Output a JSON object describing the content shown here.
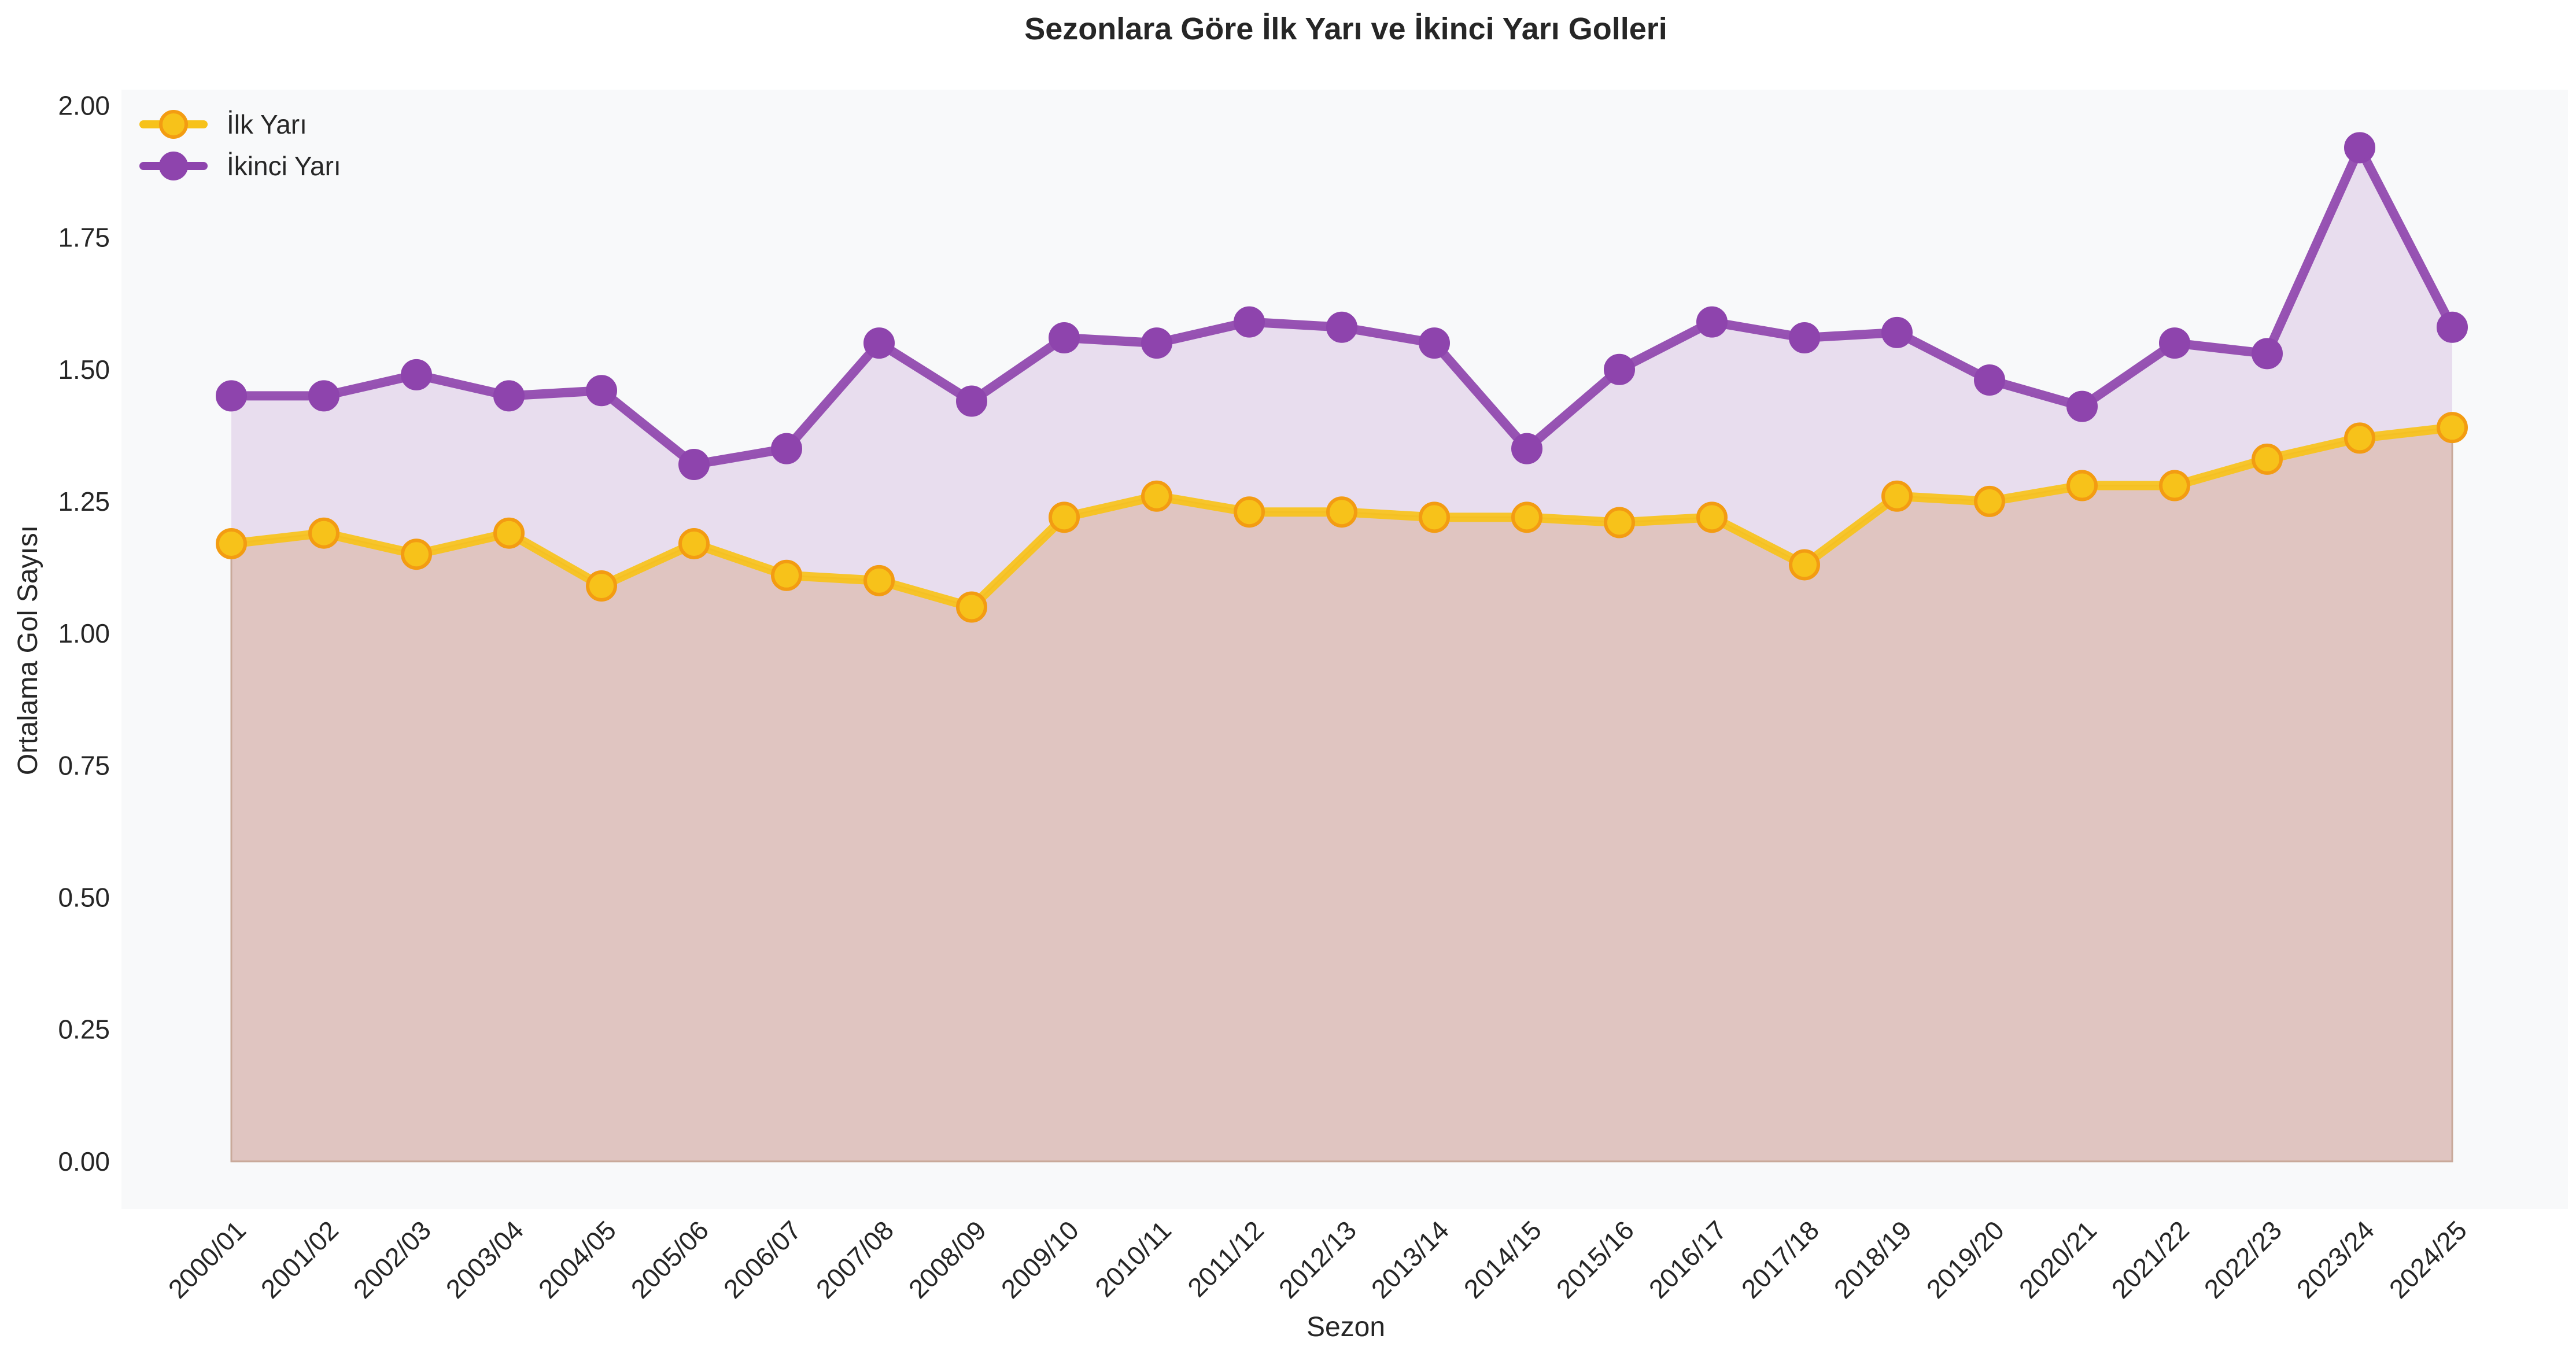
{
  "chart_data": {
    "type": "area",
    "title": "Sezonlara Göre İlk Yarı ve İkinci Yarı Golleri",
    "xlabel": "Sezon",
    "ylabel": "Ortalama Gol Sayısı",
    "ylim": [
      -0.09,
      2.03
    ],
    "yticks": [
      0.0,
      0.25,
      0.5,
      0.75,
      1.0,
      1.25,
      1.5,
      1.75,
      2.0
    ],
    "ytick_labels": [
      "0.00",
      "0.25",
      "0.50",
      "0.75",
      "1.00",
      "1.25",
      "1.50",
      "1.75",
      "2.00"
    ],
    "grid": false,
    "legend_position": "top-left",
    "categories": [
      "2000/01",
      "2001/02",
      "2002/03",
      "2003/04",
      "2004/05",
      "2005/06",
      "2006/07",
      "2007/08",
      "2008/09",
      "2009/10",
      "2010/11",
      "2011/12",
      "2012/13",
      "2013/14",
      "2014/15",
      "2015/16",
      "2016/17",
      "2017/18",
      "2018/19",
      "2019/20",
      "2020/21",
      "2021/22",
      "2022/23",
      "2023/24",
      "2024/25"
    ],
    "series": [
      {
        "name": "İlk Yarı",
        "color": "#f7c21a",
        "edge_color": "#f39c12",
        "values": [
          1.17,
          1.19,
          1.15,
          1.19,
          1.09,
          1.17,
          1.11,
          1.1,
          1.05,
          1.22,
          1.26,
          1.23,
          1.23,
          1.22,
          1.22,
          1.21,
          1.22,
          1.13,
          1.26,
          1.25,
          1.28,
          1.28,
          1.33,
          1.37,
          1.39
        ]
      },
      {
        "name": "İkinci Yarı",
        "color": "#8e44ad",
        "edge_color": "#8e44ad",
        "values": [
          1.45,
          1.45,
          1.49,
          1.45,
          1.46,
          1.32,
          1.35,
          1.55,
          1.44,
          1.56,
          1.55,
          1.59,
          1.58,
          1.55,
          1.35,
          1.5,
          1.59,
          1.56,
          1.57,
          1.48,
          1.43,
          1.55,
          1.53,
          1.92,
          1.58
        ]
      }
    ],
    "colors": {
      "plot_bg": "#f8f9fa",
      "text": "#262626"
    }
  }
}
